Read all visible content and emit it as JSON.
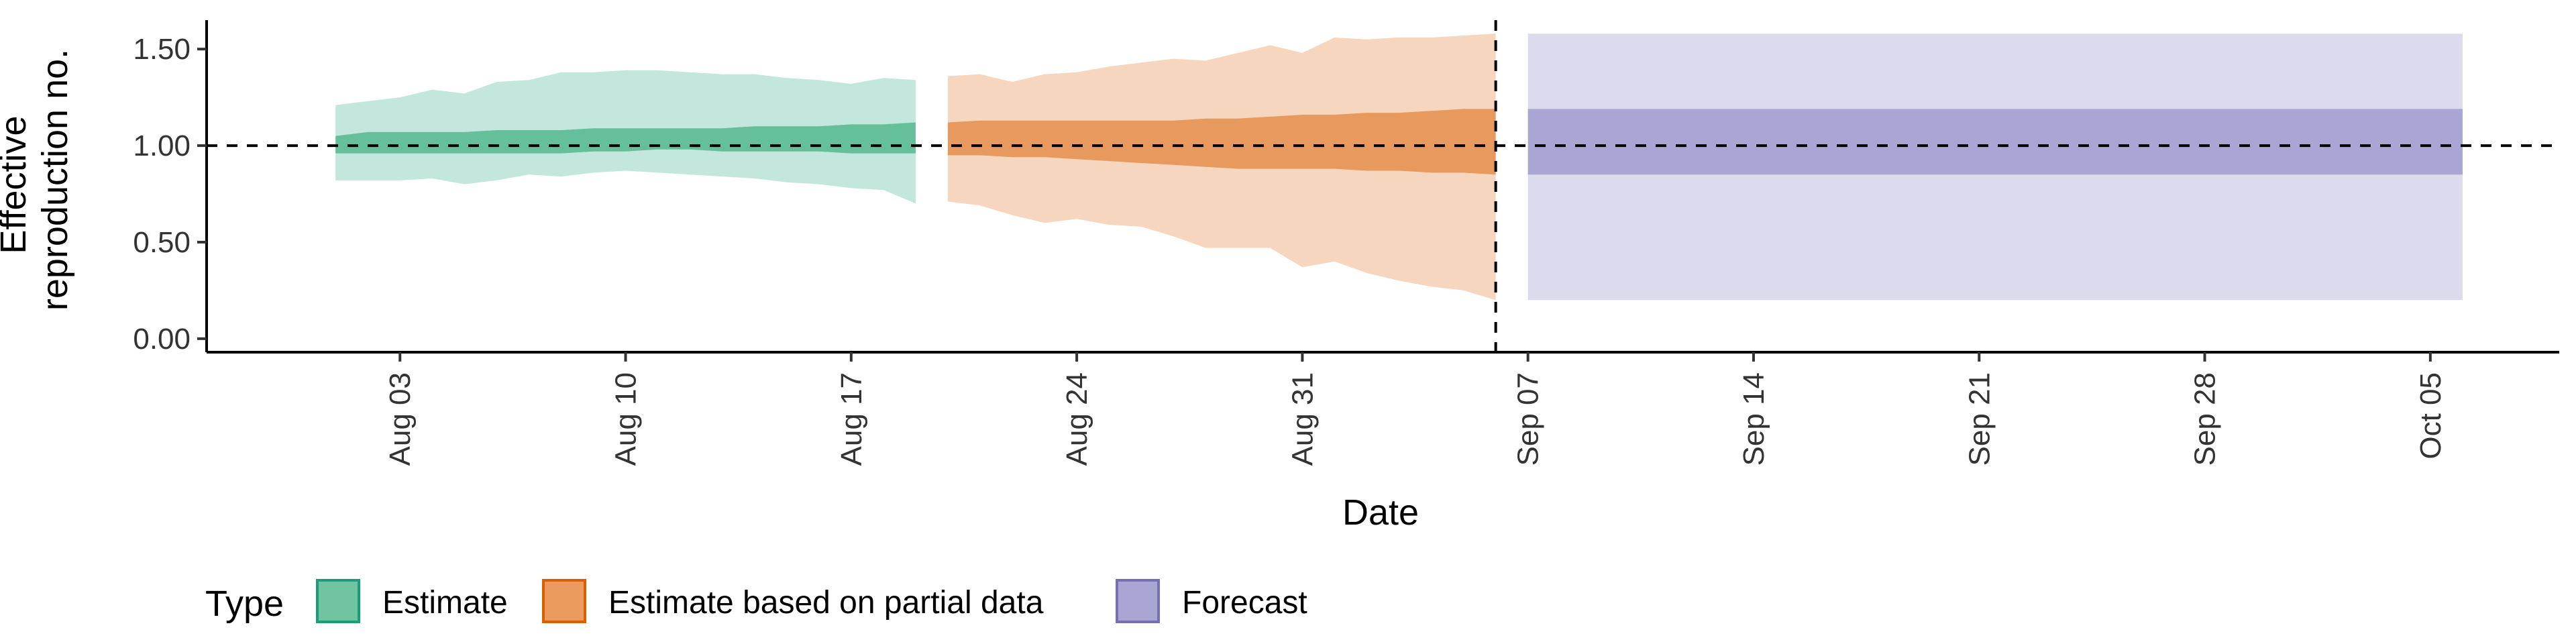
{
  "chart_data": {
    "type": "area",
    "title": "",
    "xlabel": "Date",
    "ylabel_lines": [
      "Effective",
      "reproduction no."
    ],
    "x_tick_labels": [
      "Aug 03",
      "Aug 10",
      "Aug 17",
      "Aug 24",
      "Aug 31",
      "Sep 07",
      "Sep 14",
      "Sep 21",
      "Sep 28",
      "Oct 05"
    ],
    "x_ticks": [
      "2020-08-03",
      "2020-08-10",
      "2020-08-17",
      "2020-08-24",
      "2020-08-31",
      "2020-09-07",
      "2020-09-14",
      "2020-09-21",
      "2020-09-28",
      "2020-10-05"
    ],
    "xlim": [
      "2020-07-28",
      "2020-10-09"
    ],
    "y_ticks": [
      0.0,
      0.5,
      1.0,
      1.5
    ],
    "y_tick_labels": [
      "0.00",
      "0.50",
      "1.00",
      "1.50"
    ],
    "ylim": [
      -0.07,
      1.65
    ],
    "reference_hline": 1.0,
    "reference_vline": "2020-09-06",
    "legend": {
      "title": "Type",
      "position": "bottom-left",
      "entries": [
        "Estimate",
        "Estimate based on partial data",
        "Forecast"
      ]
    },
    "colors": {
      "Estimate": {
        "outer": "#c3e7dc",
        "inner": "#66bf9b",
        "key": "#71c4a2",
        "border": "#1b9e77"
      },
      "Estimate based on partial data": {
        "outer": "#f6d6bf",
        "inner": "#e89a5e",
        "key": "#eb9b5d",
        "border": "#d95f02"
      },
      "Forecast": {
        "outer": "#dcdbed",
        "inner": "#a9a6d4",
        "key": "#a9a6d4",
        "border": "#7570b3"
      }
    },
    "series": [
      {
        "name": "Estimate",
        "dates": [
          "2020-08-01",
          "2020-08-02",
          "2020-08-03",
          "2020-08-04",
          "2020-08-05",
          "2020-08-06",
          "2020-08-07",
          "2020-08-08",
          "2020-08-09",
          "2020-08-10",
          "2020-08-11",
          "2020-08-12",
          "2020-08-13",
          "2020-08-14",
          "2020-08-15",
          "2020-08-16",
          "2020-08-17",
          "2020-08-18",
          "2020-08-19"
        ],
        "lower_90": [
          0.82,
          0.82,
          0.82,
          0.83,
          0.8,
          0.82,
          0.85,
          0.84,
          0.86,
          0.87,
          0.86,
          0.85,
          0.84,
          0.83,
          0.81,
          0.8,
          0.78,
          0.77,
          0.7
        ],
        "upper_90": [
          1.21,
          1.23,
          1.25,
          1.29,
          1.27,
          1.33,
          1.34,
          1.38,
          1.38,
          1.39,
          1.39,
          1.38,
          1.37,
          1.37,
          1.35,
          1.34,
          1.32,
          1.35,
          1.34
        ],
        "lower_50": [
          0.96,
          0.96,
          0.96,
          0.96,
          0.96,
          0.96,
          0.96,
          0.96,
          0.97,
          0.97,
          0.98,
          0.98,
          0.97,
          0.97,
          0.97,
          0.97,
          0.96,
          0.96,
          0.96
        ],
        "upper_50": [
          1.05,
          1.07,
          1.07,
          1.07,
          1.07,
          1.08,
          1.08,
          1.08,
          1.09,
          1.09,
          1.09,
          1.09,
          1.09,
          1.1,
          1.1,
          1.1,
          1.11,
          1.11,
          1.12
        ]
      },
      {
        "name": "Estimate based on partial data",
        "dates": [
          "2020-08-20",
          "2020-08-21",
          "2020-08-22",
          "2020-08-23",
          "2020-08-24",
          "2020-08-25",
          "2020-08-26",
          "2020-08-27",
          "2020-08-28",
          "2020-08-29",
          "2020-08-30",
          "2020-08-31",
          "2020-09-01",
          "2020-09-02",
          "2020-09-03",
          "2020-09-04",
          "2020-09-05",
          "2020-09-06"
        ],
        "lower_90": [
          0.71,
          0.69,
          0.64,
          0.6,
          0.62,
          0.59,
          0.58,
          0.53,
          0.47,
          0.47,
          0.47,
          0.37,
          0.4,
          0.34,
          0.3,
          0.27,
          0.25,
          0.2
        ],
        "upper_90": [
          1.36,
          1.37,
          1.33,
          1.37,
          1.38,
          1.41,
          1.43,
          1.45,
          1.44,
          1.48,
          1.52,
          1.48,
          1.56,
          1.55,
          1.56,
          1.56,
          1.57,
          1.58
        ],
        "lower_50": [
          0.95,
          0.95,
          0.94,
          0.94,
          0.93,
          0.92,
          0.91,
          0.9,
          0.89,
          0.88,
          0.88,
          0.88,
          0.88,
          0.87,
          0.87,
          0.86,
          0.86,
          0.85
        ],
        "upper_50": [
          1.12,
          1.13,
          1.13,
          1.13,
          1.13,
          1.13,
          1.13,
          1.13,
          1.14,
          1.14,
          1.15,
          1.16,
          1.16,
          1.17,
          1.17,
          1.18,
          1.19,
          1.19
        ]
      },
      {
        "name": "Forecast",
        "dates": [
          "2020-09-07",
          "2020-10-06"
        ],
        "lower_90": [
          0.2,
          0.2
        ],
        "upper_90": [
          1.58,
          1.58
        ],
        "lower_50": [
          0.85,
          0.85
        ],
        "upper_50": [
          1.19,
          1.19
        ]
      }
    ]
  }
}
